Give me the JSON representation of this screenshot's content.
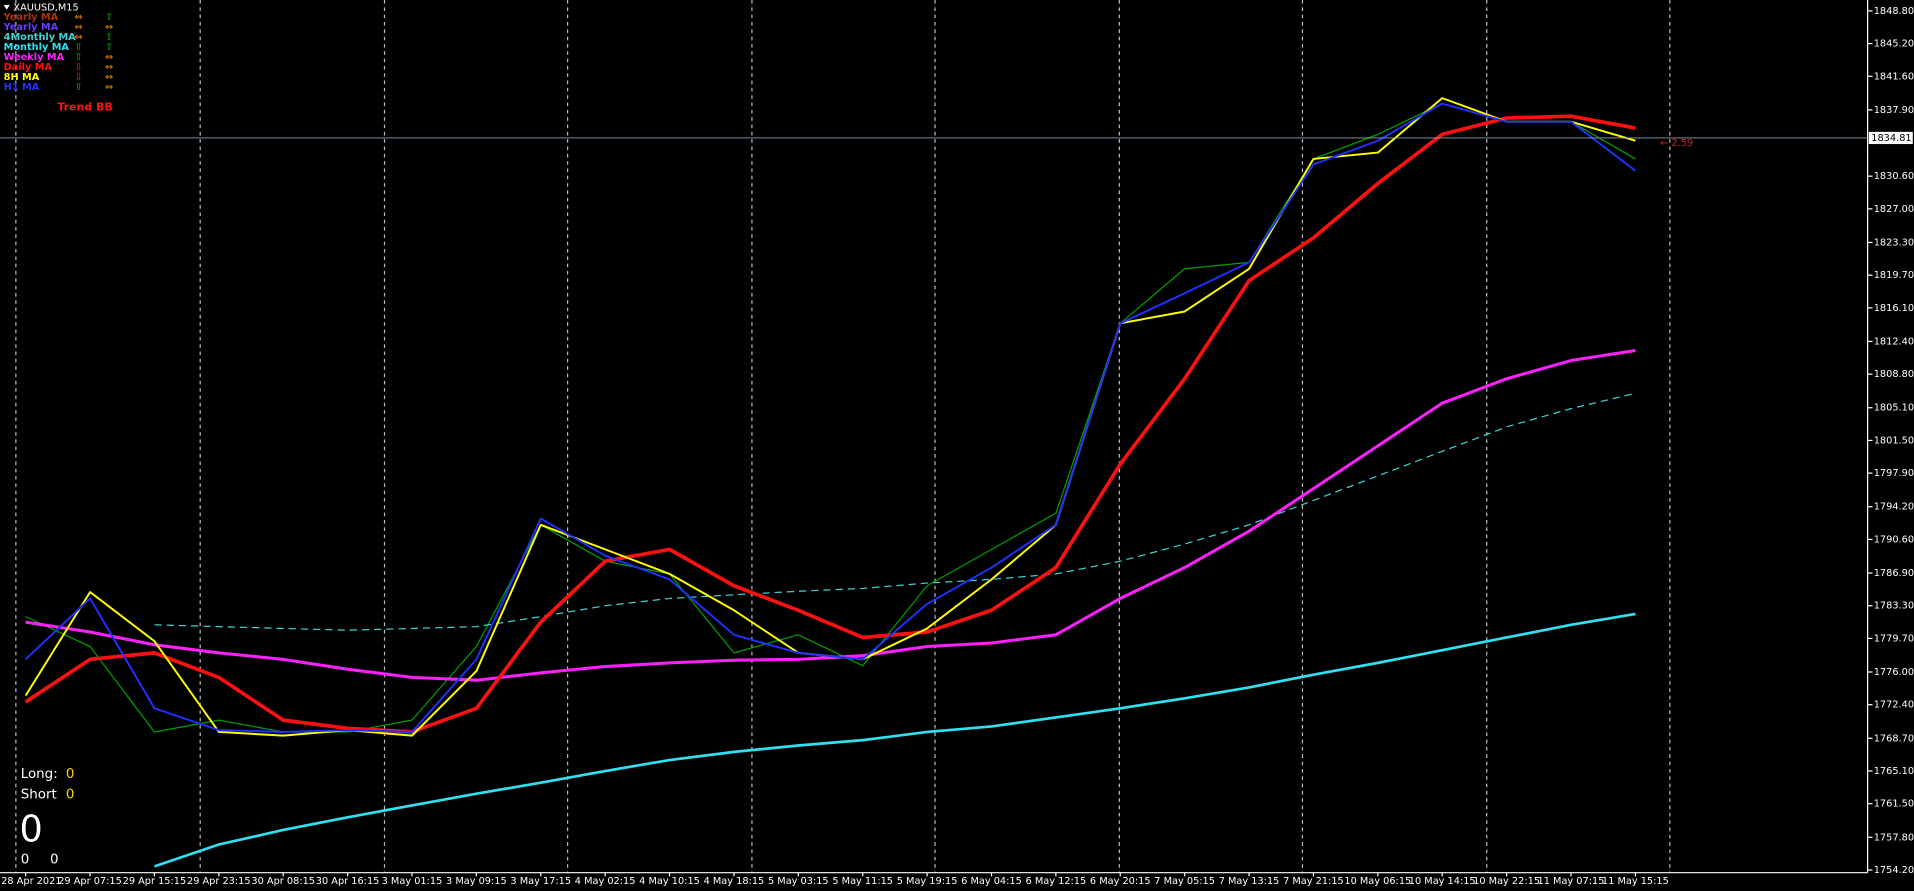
{
  "chart_data": {
    "type": "line",
    "title": "XAUUSD,M15",
    "categories": [
      "28 Apr 2021",
      "29 Apr 07:15",
      "29 Apr 15:15",
      "29 Apr 23:15",
      "30 Apr 08:15",
      "30 Apr 16:15",
      "3 May 01:15",
      "3 May 09:15",
      "3 May 17:15",
      "4 May 02:15",
      "4 May 10:15",
      "4 May 18:15",
      "5 May 03:15",
      "5 May 11:15",
      "5 May 19:15",
      "6 May 04:15",
      "6 May 12:15",
      "6 May 20:15",
      "7 May 05:15",
      "7 May 13:15",
      "7 May 21:15",
      "10 May 06:15",
      "10 May 14:15",
      "10 May 22:15",
      "11 May 07:15",
      "11 May 15:15"
    ],
    "ylim": [
      1753.9,
      1850.0
    ],
    "yticks": [
      {
        "value": 1848.8,
        "label": "1848.80"
      },
      {
        "value": 1845.2,
        "label": "1845.20"
      },
      {
        "value": 1841.6,
        "label": "1841.60"
      },
      {
        "value": 1837.9,
        "label": "1837.90"
      },
      {
        "value": 1830.6,
        "label": "1830.60"
      },
      {
        "value": 1827.0,
        "label": "1827.00"
      },
      {
        "value": 1823.3,
        "label": "1823.30"
      },
      {
        "value": 1819.7,
        "label": "1819.70"
      },
      {
        "value": 1816.1,
        "label": "1816.10"
      },
      {
        "value": 1812.4,
        "label": "1812.40"
      },
      {
        "value": 1808.8,
        "label": "1808.80"
      },
      {
        "value": 1805.1,
        "label": "1805.10"
      },
      {
        "value": 1801.5,
        "label": "1801.50"
      },
      {
        "value": 1797.9,
        "label": "1797.90"
      },
      {
        "value": 1794.2,
        "label": "1794.20"
      },
      {
        "value": 1790.6,
        "label": "1790.60"
      },
      {
        "value": 1786.9,
        "label": "1786.90"
      },
      {
        "value": 1783.3,
        "label": "1783.30"
      },
      {
        "value": 1779.7,
        "label": "1779.70"
      },
      {
        "value": 1776.0,
        "label": "1776.00"
      },
      {
        "value": 1772.4,
        "label": "1772.40"
      },
      {
        "value": 1768.7,
        "label": "1768.70"
      },
      {
        "value": 1765.1,
        "label": "1765.10"
      },
      {
        "value": 1761.5,
        "label": "1761.50"
      },
      {
        "value": 1757.8,
        "label": "1757.80"
      },
      {
        "value": 1754.2,
        "label": "1754.20"
      }
    ],
    "current_price": {
      "value": 1834.81,
      "label": "1834.81"
    },
    "spread_label": "← 2.59",
    "price": {
      "color": "#00a000",
      "values": [
        1782.1,
        1778.8,
        1769.4,
        1770.7,
        1769.4,
        1769.4,
        1770.7,
        1778.8,
        1792.2,
        1788.2,
        1786.8,
        1778.1,
        1780.1,
        1776.7,
        1785.5,
        1789.5,
        1793.5,
        1814.4,
        1820.4,
        1821.1,
        1832.5,
        1835.2,
        1838.6,
        1836.6,
        1836.6,
        1832.5
      ]
    },
    "series": [
      {
        "name": "Yearly MA",
        "color": "#b03000",
        "width": 1,
        "dashed": false,
        "signals": [
          {
            "label": "⇔",
            "color": "#ff8c00"
          },
          {
            "label": "⇧",
            "color": "#00c000"
          }
        ],
        "values": [
          null,
          null,
          null,
          null,
          null,
          null,
          null,
          null,
          null,
          null,
          null,
          null,
          null,
          null,
          null,
          null,
          null,
          null,
          null,
          null,
          null,
          null,
          null,
          null,
          null,
          null
        ]
      },
      {
        "name": "Yearly MA",
        "color": "#6a3cff",
        "width": 1,
        "dashed": false,
        "signals": [
          {
            "label": "⇔",
            "color": "#ff8c00"
          },
          {
            "label": "⇔",
            "color": "#ff8c00"
          }
        ],
        "values": [
          null,
          null,
          null,
          null,
          null,
          null,
          null,
          null,
          null,
          null,
          null,
          null,
          null,
          null,
          null,
          null,
          null,
          null,
          null,
          null,
          null,
          null,
          null,
          null,
          null,
          null
        ]
      },
      {
        "name": "4Monthly MA",
        "color": "#40d0d0",
        "width": 1,
        "dashed": true,
        "signals": [
          {
            "label": "⇔",
            "color": "#ff8c00"
          },
          {
            "label": "⇧",
            "color": "#00c000"
          }
        ],
        "values": [
          null,
          null,
          1781.2,
          1781.0,
          1780.8,
          1780.6,
          1780.8,
          1781.0,
          1782.1,
          1783.3,
          1784.1,
          1784.5,
          1784.9,
          1785.2,
          1785.8,
          1786.2,
          1786.8,
          1788.2,
          1790.1,
          1792.2,
          1794.9,
          1797.6,
          1800.3,
          1803.0,
          1805.0,
          1806.7
        ]
      },
      {
        "name": "Monthly MA",
        "color": "#30e0f0",
        "width": 2.2,
        "dashed": false,
        "signals": [
          {
            "label": "⇧",
            "color": "#00c000"
          },
          {
            "label": "⇧",
            "color": "#00c000"
          }
        ],
        "values": [
          null,
          null,
          1754.6,
          1757.0,
          1758.6,
          1760.0,
          1761.3,
          1762.6,
          1763.8,
          1765.1,
          1766.3,
          1767.2,
          1767.9,
          1768.5,
          1769.4,
          1770.0,
          1771.0,
          1772.0,
          1773.1,
          1774.3,
          1775.7,
          1777.0,
          1778.4,
          1779.8,
          1781.2,
          1782.4
        ]
      },
      {
        "name": "Weekly MA",
        "color": "#ff20ff",
        "width": 2.5,
        "dashed": false,
        "signals": [
          {
            "label": "⇧",
            "color": "#00c000"
          },
          {
            "label": "⇔",
            "color": "#ff8c00"
          }
        ],
        "values": [
          1781.5,
          1780.4,
          1779.0,
          1778.1,
          1777.4,
          1776.3,
          1775.4,
          1775.1,
          1775.9,
          1776.6,
          1777.0,
          1777.3,
          1777.4,
          1777.8,
          1778.8,
          1779.2,
          1780.1,
          1784.1,
          1787.5,
          1791.5,
          1796.2,
          1800.9,
          1805.6,
          1808.3,
          1810.3,
          1811.4
        ]
      },
      {
        "name": "Daily MA",
        "color": "#ff1010",
        "width": 3,
        "dashed": false,
        "signals": [
          {
            "label": "⇩",
            "color": "#ff2020"
          },
          {
            "label": "⇔",
            "color": "#ff8c00"
          }
        ],
        "values": [
          1772.7,
          1777.4,
          1778.1,
          1775.4,
          1770.7,
          1769.8,
          1769.4,
          1772.0,
          1781.5,
          1788.2,
          1789.5,
          1785.5,
          1782.8,
          1779.8,
          1780.4,
          1782.8,
          1787.5,
          1798.9,
          1808.3,
          1819.1,
          1823.8,
          1829.8,
          1835.2,
          1837.0,
          1837.2,
          1835.9
        ]
      },
      {
        "name": "8H MA",
        "color": "#ffff00",
        "width": 1.6,
        "dashed": false,
        "signals": [
          {
            "label": "⇩",
            "color": "#ff2020"
          },
          {
            "label": "⇔",
            "color": "#ff8c00"
          }
        ],
        "values": [
          1773.4,
          1784.8,
          1779.4,
          1769.4,
          1769.0,
          1769.6,
          1769.0,
          1776.1,
          1792.2,
          1789.5,
          1786.8,
          1782.8,
          1778.1,
          1777.4,
          1780.8,
          1786.2,
          1792.2,
          1814.4,
          1815.7,
          1820.4,
          1832.5,
          1833.2,
          1839.2,
          1836.6,
          1836.6,
          1834.5
        ]
      },
      {
        "name": "H1 MA",
        "color": "#2030ff",
        "width": 1.6,
        "dashed": false,
        "signals": [
          {
            "label": "⇧",
            "color": "#00c000"
          },
          {
            "label": "⇔",
            "color": "#ff8c00"
          }
        ],
        "values": [
          1777.4,
          1784.1,
          1772.0,
          1769.6,
          1769.4,
          1769.6,
          1769.4,
          1777.4,
          1792.9,
          1788.8,
          1786.2,
          1780.1,
          1778.1,
          1777.4,
          1783.5,
          1787.5,
          1792.2,
          1814.4,
          1817.7,
          1821.1,
          1831.9,
          1834.5,
          1838.6,
          1836.6,
          1836.6,
          1831.2
        ]
      }
    ]
  },
  "panel": {
    "trend_label": "Trend BB",
    "long_label": "Long:",
    "long_value": 0,
    "short_label": "Short",
    "short_value": 0,
    "total": 0,
    "bottom_left": 0,
    "bottom_right": 0
  }
}
